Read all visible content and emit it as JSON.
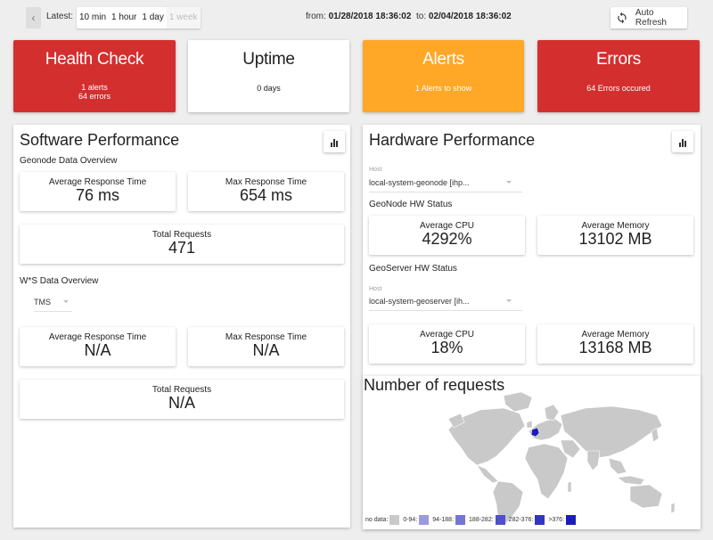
{
  "topbar": {
    "latest_label": "Latest:",
    "ranges": [
      {
        "label": "10 min",
        "enabled": true
      },
      {
        "label": "1 hour",
        "enabled": true
      },
      {
        "label": "1 day",
        "enabled": true
      },
      {
        "label": "1 week",
        "enabled": false
      }
    ],
    "from_label": "from:",
    "from_value": "01/28/2018 18:36:02",
    "to_label": "to:",
    "to_value": "02/04/2018 18:36:02",
    "auto_refresh_label": "Auto Refresh"
  },
  "summary": {
    "health": {
      "title": "Health Check",
      "alerts": "1 alerts",
      "errors": "64 errors"
    },
    "uptime": {
      "title": "Uptime",
      "value": "0 days"
    },
    "alerts": {
      "title": "Alerts",
      "value": "1 Alerts to show"
    },
    "errors": {
      "title": "Errors",
      "value": "64 Errors occured"
    }
  },
  "software": {
    "title": "Software Performance",
    "geonode_label": "Geonode Data Overview",
    "avg_label": "Average Response Time",
    "avg_value": "76 ms",
    "max_label": "Max Response Time",
    "max_value": "654 ms",
    "total_label": "Total Requests",
    "total_value": "471",
    "ws_label": "W*S Data Overview",
    "ws_select": "TMS",
    "ws_avg_label": "Average Response Time",
    "ws_avg_value": "N/A",
    "ws_max_label": "Max Response Time",
    "ws_max_value": "N/A",
    "ws_total_label": "Total Requests",
    "ws_total_value": "N/A"
  },
  "hardware": {
    "title": "Hardware Performance",
    "host_label": "Host",
    "geonode_host": "local-system-geonode [ihp...",
    "geonode_status": "GeoNode HW Status",
    "geonode_cpu_label": "Average CPU",
    "geonode_cpu_value": "4292%",
    "geonode_mem_label": "Average Memory",
    "geonode_mem_value": "13102 MB",
    "geoserver_status": "GeoServer HW Status",
    "geoserver_host_label": "Host",
    "geoserver_host": "local-system-geoserver [ih...",
    "geoserver_cpu_label": "Average CPU",
    "geoserver_cpu_value": "18%",
    "geoserver_mem_label": "Average Memory",
    "geoserver_mem_value": "13168 MB"
  },
  "map": {
    "title": "Number of requests",
    "legend": [
      {
        "label": "no data:",
        "color": "#c9c9c9"
      },
      {
        "label": "0-94:",
        "color": "#9a9ae0"
      },
      {
        "label": "94-188:",
        "color": "#7575d8"
      },
      {
        "label": "188-282:",
        "color": "#5050cc"
      },
      {
        "label": "282-376:",
        "color": "#3434c4"
      },
      {
        "label": ">376:",
        "color": "#1c1cb8"
      }
    ]
  },
  "colors": {
    "red": "#d32f2f",
    "orange": "#ffa726",
    "highlight": "#1c1cb8"
  }
}
